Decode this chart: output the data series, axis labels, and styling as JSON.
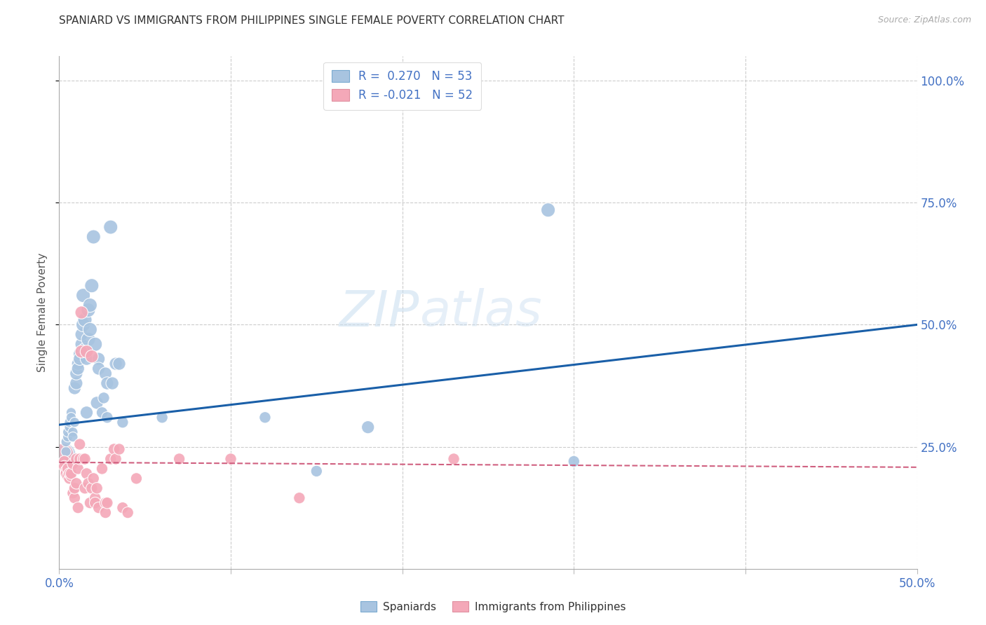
{
  "title": "SPANIARD VS IMMIGRANTS FROM PHILIPPINES SINGLE FEMALE POVERTY CORRELATION CHART",
  "source": "Source: ZipAtlas.com",
  "ylabel": "Single Female Poverty",
  "legend_blue_r": "R =  0.270",
  "legend_blue_n": "N = 53",
  "legend_pink_r": "R = -0.021",
  "legend_pink_n": "N = 52",
  "blue_color": "#a8c4e0",
  "pink_color": "#f4a8b8",
  "blue_line_color": "#1a5fa8",
  "pink_line_color": "#d06080",
  "blue_scatter": [
    [
      0.003,
      0.235
    ],
    [
      0.004,
      0.24
    ],
    [
      0.004,
      0.26
    ],
    [
      0.005,
      0.27
    ],
    [
      0.005,
      0.28
    ],
    [
      0.006,
      0.29
    ],
    [
      0.006,
      0.3
    ],
    [
      0.007,
      0.32
    ],
    [
      0.007,
      0.31
    ],
    [
      0.008,
      0.28
    ],
    [
      0.008,
      0.27
    ],
    [
      0.009,
      0.3
    ],
    [
      0.009,
      0.37
    ],
    [
      0.01,
      0.38
    ],
    [
      0.01,
      0.4
    ],
    [
      0.011,
      0.42
    ],
    [
      0.011,
      0.41
    ],
    [
      0.012,
      0.44
    ],
    [
      0.012,
      0.43
    ],
    [
      0.013,
      0.46
    ],
    [
      0.013,
      0.48
    ],
    [
      0.014,
      0.5
    ],
    [
      0.014,
      0.56
    ],
    [
      0.015,
      0.51
    ],
    [
      0.015,
      0.45
    ],
    [
      0.016,
      0.43
    ],
    [
      0.016,
      0.32
    ],
    [
      0.017,
      0.47
    ],
    [
      0.017,
      0.53
    ],
    [
      0.018,
      0.49
    ],
    [
      0.018,
      0.54
    ],
    [
      0.019,
      0.58
    ],
    [
      0.02,
      0.68
    ],
    [
      0.021,
      0.46
    ],
    [
      0.022,
      0.34
    ],
    [
      0.023,
      0.43
    ],
    [
      0.023,
      0.41
    ],
    [
      0.025,
      0.32
    ],
    [
      0.026,
      0.35
    ],
    [
      0.027,
      0.4
    ],
    [
      0.028,
      0.38
    ],
    [
      0.028,
      0.31
    ],
    [
      0.03,
      0.7
    ],
    [
      0.031,
      0.38
    ],
    [
      0.033,
      0.42
    ],
    [
      0.035,
      0.42
    ],
    [
      0.037,
      0.3
    ],
    [
      0.06,
      0.31
    ],
    [
      0.12,
      0.31
    ],
    [
      0.15,
      0.2
    ],
    [
      0.18,
      0.29
    ],
    [
      0.285,
      0.735
    ],
    [
      0.3,
      0.22
    ]
  ],
  "pink_scatter": [
    [
      0.002,
      0.235
    ],
    [
      0.003,
      0.22
    ],
    [
      0.003,
      0.21
    ],
    [
      0.004,
      0.2
    ],
    [
      0.004,
      0.195
    ],
    [
      0.005,
      0.205
    ],
    [
      0.005,
      0.19
    ],
    [
      0.006,
      0.185
    ],
    [
      0.006,
      0.195
    ],
    [
      0.007,
      0.19
    ],
    [
      0.007,
      0.195
    ],
    [
      0.008,
      0.215
    ],
    [
      0.008,
      0.155
    ],
    [
      0.009,
      0.145
    ],
    [
      0.009,
      0.165
    ],
    [
      0.01,
      0.175
    ],
    [
      0.01,
      0.225
    ],
    [
      0.011,
      0.205
    ],
    [
      0.011,
      0.125
    ],
    [
      0.012,
      0.225
    ],
    [
      0.012,
      0.255
    ],
    [
      0.013,
      0.525
    ],
    [
      0.013,
      0.445
    ],
    [
      0.014,
      0.225
    ],
    [
      0.015,
      0.225
    ],
    [
      0.015,
      0.165
    ],
    [
      0.016,
      0.445
    ],
    [
      0.016,
      0.195
    ],
    [
      0.017,
      0.175
    ],
    [
      0.018,
      0.135
    ],
    [
      0.019,
      0.165
    ],
    [
      0.019,
      0.435
    ],
    [
      0.02,
      0.185
    ],
    [
      0.021,
      0.145
    ],
    [
      0.021,
      0.135
    ],
    [
      0.022,
      0.165
    ],
    [
      0.023,
      0.125
    ],
    [
      0.025,
      0.205
    ],
    [
      0.027,
      0.135
    ],
    [
      0.027,
      0.115
    ],
    [
      0.028,
      0.135
    ],
    [
      0.03,
      0.225
    ],
    [
      0.032,
      0.245
    ],
    [
      0.033,
      0.225
    ],
    [
      0.035,
      0.245
    ],
    [
      0.037,
      0.125
    ],
    [
      0.04,
      0.115
    ],
    [
      0.045,
      0.185
    ],
    [
      0.07,
      0.225
    ],
    [
      0.1,
      0.225
    ],
    [
      0.14,
      0.145
    ],
    [
      0.23,
      0.225
    ]
  ],
  "blue_bubble_sizes": [
    500,
    30,
    30,
    30,
    30,
    30,
    30,
    30,
    30,
    30,
    30,
    30,
    50,
    50,
    50,
    50,
    50,
    50,
    50,
    50,
    50,
    60,
    60,
    60,
    50,
    50,
    50,
    60,
    60,
    60,
    60,
    60,
    60,
    60,
    50,
    50,
    50,
    40,
    40,
    50,
    50,
    40,
    60,
    50,
    50,
    50,
    40,
    40,
    40,
    40,
    50,
    60,
    40
  ],
  "pink_bubble_sizes": [
    500,
    40,
    40,
    40,
    40,
    40,
    40,
    40,
    40,
    40,
    40,
    40,
    40,
    40,
    40,
    40,
    40,
    40,
    40,
    40,
    40,
    50,
    50,
    40,
    40,
    40,
    50,
    40,
    40,
    40,
    40,
    50,
    40,
    40,
    40,
    40,
    40,
    40,
    40,
    40,
    40,
    40,
    40,
    40,
    40,
    40,
    40,
    40,
    40,
    40,
    40,
    40
  ],
  "xlim": [
    0.0,
    0.5
  ],
  "ylim": [
    0.0,
    1.05
  ],
  "blue_line_x": [
    0.0,
    0.5
  ],
  "blue_line_y": [
    0.295,
    0.5
  ],
  "pink_line_x": [
    0.0,
    0.5
  ],
  "pink_line_y": [
    0.218,
    0.208
  ],
  "watermark_zip": "ZIP",
  "watermark_atlas": "atlas",
  "grid_color": "#cccccc",
  "bg_color": "#ffffff",
  "tick_label_color": "#4472c4"
}
